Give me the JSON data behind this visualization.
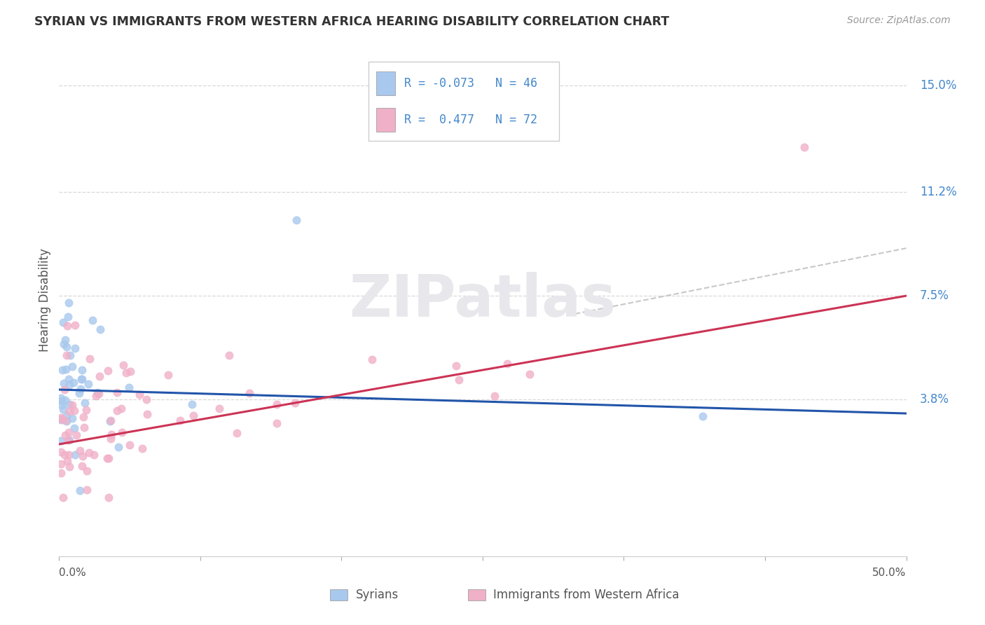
{
  "title": "SYRIAN VS IMMIGRANTS FROM WESTERN AFRICA HEARING DISABILITY CORRELATION CHART",
  "source": "Source: ZipAtlas.com",
  "ylabel": "Hearing Disability",
  "ytick_labels": [
    "3.8%",
    "7.5%",
    "11.2%",
    "15.0%"
  ],
  "ytick_values": [
    0.038,
    0.075,
    0.112,
    0.15
  ],
  "xmin": 0.0,
  "xmax": 0.5,
  "ymin": -0.018,
  "ymax": 0.165,
  "color_syrians": "#a8c8ee",
  "color_wa": "#f0b0c8",
  "color_line_syrians": "#2255aa",
  "color_line_wa": "#cc3355",
  "color_dashed": "#c8c8c8",
  "color_grid": "#d8d8d8",
  "color_ytick": "#4488cc",
  "color_title": "#333333",
  "color_source": "#999999",
  "watermark_color": "#e8e8ec",
  "legend_text_color": "#4488cc",
  "legend_label_color": "#555555",
  "syrians_line_start_y": 0.0415,
  "syrians_line_end_y": 0.033,
  "wa_line_start_y": 0.022,
  "wa_line_end_y": 0.075,
  "dashed_line_start_x": 0.3,
  "dashed_line_start_y": 0.068,
  "dashed_line_end_x": 0.5,
  "dashed_line_end_y": 0.092
}
